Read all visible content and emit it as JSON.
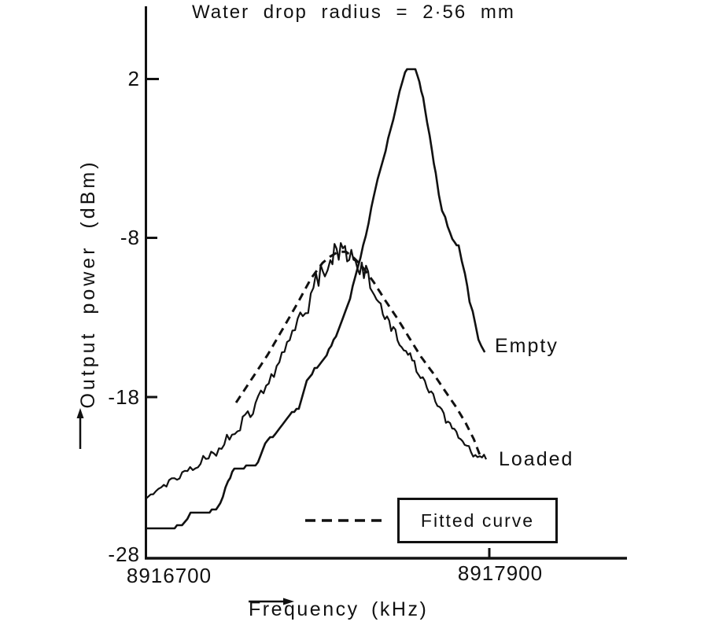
{
  "title": "Water drop radius = 2·56 mm",
  "axes": {
    "y_label": "Output power (dBm)",
    "x_label": "Frequency (kHz)",
    "y_tick_labels": [
      "2",
      "-8",
      "-18",
      "-28"
    ],
    "x_tick_labels": [
      "8916700",
      "8917900"
    ]
  },
  "annotations": {
    "empty_curve_label": "Empty",
    "loaded_curve_label": "Loaded",
    "legend_label": "Fitted curve"
  },
  "icons": {
    "y_axis_arrow": "arrow-up",
    "x_axis_arrow": "arrow-right"
  },
  "colors": {
    "ink": "#111111",
    "background": "#ffffff"
  },
  "chart_data": {
    "type": "line",
    "title": "Water drop radius = 2.56 mm",
    "xlabel": "Frequency (kHz)",
    "ylabel": "Output power (dBm)",
    "xlim": [
      8916700,
      8918375
    ],
    "ylim": [
      -28,
      6.6
    ],
    "x_tick_values": [
      8916700,
      8917900
    ],
    "y_tick_values": [
      2,
      -8,
      -18,
      -28
    ],
    "grid": false,
    "legend_position": "inside-bottom-right",
    "series": [
      {
        "name": "Empty",
        "style": "solid-staircase",
        "points": [
          [
            8916700,
            -26.4
          ],
          [
            8916769,
            -26.3
          ],
          [
            8916818,
            -26.2
          ],
          [
            8916846,
            -25.8
          ],
          [
            8916857,
            -25.3
          ],
          [
            8916900,
            -25.3
          ],
          [
            8916939,
            -25.2
          ],
          [
            8916961,
            -24.7
          ],
          [
            8916988,
            -23.4
          ],
          [
            8917010,
            -22.5
          ],
          [
            8917084,
            -22.4
          ],
          [
            8917126,
            -20.7
          ],
          [
            8917153,
            -20.4
          ],
          [
            8917203,
            -19.1
          ],
          [
            8917235,
            -18.8
          ],
          [
            8917263,
            -17.1
          ],
          [
            8917290,
            -16.3
          ],
          [
            8917332,
            -15.4
          ],
          [
            8917373,
            -13.9
          ],
          [
            8917414,
            -11.8
          ],
          [
            8917441,
            -9.9
          ],
          [
            8917469,
            -7.9
          ],
          [
            8917488,
            -6.2
          ],
          [
            8917510,
            -4.4
          ],
          [
            8917538,
            -2.5
          ],
          [
            8917565,
            -0.5
          ],
          [
            8917587,
            1.3
          ],
          [
            8917606,
            2.4
          ],
          [
            8917620,
            2.6
          ],
          [
            8917642,
            2.6
          ],
          [
            8917656,
            1.8
          ],
          [
            8917669,
            0.8
          ],
          [
            8917683,
            -0.7
          ],
          [
            8917700,
            -2.5
          ],
          [
            8917713,
            -4.0
          ],
          [
            8917724,
            -5.4
          ],
          [
            8917735,
            -6.4
          ],
          [
            8917746,
            -6.7
          ],
          [
            8917763,
            -7.8
          ],
          [
            8917779,
            -8.3
          ],
          [
            8917793,
            -8.5
          ],
          [
            8917804,
            -9.4
          ],
          [
            8917815,
            -10.3
          ],
          [
            8917823,
            -11.1
          ],
          [
            8917831,
            -12.0
          ],
          [
            8917842,
            -12.7
          ],
          [
            8917851,
            -13.5
          ],
          [
            8917862,
            -14.4
          ],
          [
            8917872,
            -14.9
          ],
          [
            8917884,
            -15.2
          ]
        ]
      },
      {
        "name": "Loaded",
        "style": "solid-noisy",
        "noise": {
          "amplitude_db_base": 0.12,
          "amplitude_db_peak": 0.6,
          "center_khz": 8917285,
          "width_khz": 315,
          "seed": 20
        },
        "points": [
          [
            8916700,
            -24.4
          ],
          [
            8916727,
            -24.1
          ],
          [
            8916755,
            -23.8
          ],
          [
            8916782,
            -23.4
          ],
          [
            8916810,
            -23.1
          ],
          [
            8916837,
            -22.8
          ],
          [
            8916865,
            -22.5
          ],
          [
            8916892,
            -22.2
          ],
          [
            8916920,
            -21.9
          ],
          [
            8916947,
            -21.5
          ],
          [
            8916975,
            -20.9
          ],
          [
            8917002,
            -20.4
          ],
          [
            8917030,
            -19.8
          ],
          [
            8917057,
            -19.2
          ],
          [
            8917084,
            -18.6
          ],
          [
            8917112,
            -17.8
          ],
          [
            8917139,
            -17.0
          ],
          [
            8917167,
            -16.1
          ],
          [
            8917194,
            -15.2
          ],
          [
            8917222,
            -14.1
          ],
          [
            8917249,
            -13.0
          ],
          [
            8917277,
            -11.8
          ],
          [
            8917304,
            -10.5
          ],
          [
            8917326,
            -9.8
          ],
          [
            8917345,
            -9.3
          ],
          [
            8917367,
            -8.9
          ],
          [
            8917389,
            -8.8
          ],
          [
            8917411,
            -9.0
          ],
          [
            8917433,
            -9.5
          ],
          [
            8917455,
            -9.9
          ],
          [
            8917477,
            -10.5
          ],
          [
            8917499,
            -11.3
          ],
          [
            8917521,
            -12.3
          ],
          [
            8917543,
            -13.1
          ],
          [
            8917565,
            -13.8
          ],
          [
            8917587,
            -14.5
          ],
          [
            8917609,
            -15.1
          ],
          [
            8917631,
            -15.8
          ],
          [
            8917653,
            -16.4
          ],
          [
            8917675,
            -17.2
          ],
          [
            8917697,
            -17.8
          ],
          [
            8917719,
            -18.5
          ],
          [
            8917741,
            -19.1
          ],
          [
            8917763,
            -19.7
          ],
          [
            8917785,
            -20.3
          ],
          [
            8917807,
            -20.9
          ],
          [
            8917829,
            -21.4
          ],
          [
            8917851,
            -21.8
          ],
          [
            8917867,
            -21.9
          ],
          [
            8917889,
            -22.0
          ]
        ]
      },
      {
        "name": "Fitted curve",
        "style": "dashed",
        "points": [
          [
            8917016,
            -18.4
          ],
          [
            8917071,
            -16.9
          ],
          [
            8917126,
            -15.4
          ],
          [
            8917181,
            -13.7
          ],
          [
            8917235,
            -12.0
          ],
          [
            8917277,
            -10.6
          ],
          [
            8917318,
            -9.6
          ],
          [
            8917345,
            -9.2
          ],
          [
            8917373,
            -8.9
          ],
          [
            8917400,
            -8.9
          ],
          [
            8917428,
            -9.3
          ],
          [
            8917455,
            -9.8
          ],
          [
            8917496,
            -10.8
          ],
          [
            8917538,
            -12.0
          ],
          [
            8917579,
            -13.1
          ],
          [
            8917620,
            -14.3
          ],
          [
            8917661,
            -15.5
          ],
          [
            8917702,
            -16.5
          ],
          [
            8917743,
            -17.6
          ],
          [
            8917785,
            -18.7
          ],
          [
            8917818,
            -19.7
          ],
          [
            8917846,
            -20.7
          ],
          [
            8917867,
            -21.7
          ]
        ]
      }
    ]
  }
}
